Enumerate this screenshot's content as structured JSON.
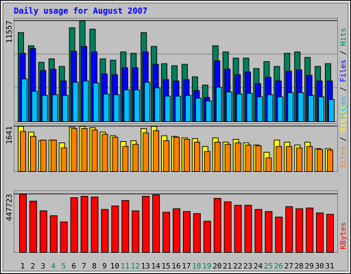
{
  "chart_data": [
    {
      "type": "bar",
      "title": "Daily usage for August 2007",
      "ylim": [
        0,
        11557
      ],
      "yticks": [
        11557
      ],
      "grid": true,
      "legend_separator": " / ",
      "series": [
        {
          "name": "Pages",
          "color": "#00c0ff",
          "values": [
            4908,
            3483,
            3008,
            3087,
            3008,
            4512,
            4670,
            4433,
            3166,
            3087,
            3641,
            3641,
            4512,
            3879,
            2929,
            2929,
            3008,
            2691,
            2375,
            3958,
            3404,
            3166,
            3246,
            2850,
            3087,
            2850,
            3325,
            3325,
            3008,
            2850,
            2533
          ]
        },
        {
          "name": "Files",
          "color": "#0000ff",
          "values": [
            7837,
            8391,
            5858,
            6016,
            4670,
            8074,
            8628,
            7995,
            5462,
            5383,
            6174,
            6174,
            7995,
            6570,
            4829,
            4670,
            4829,
            3562,
            2771,
            6966,
            6016,
            5383,
            5700,
            4354,
            5066,
            4670,
            5779,
            5937,
            5304,
            4670,
            4670
          ]
        },
        {
          "name": "Hits",
          "color": "#00805c",
          "values": [
            10211,
            8707,
            6808,
            7203,
            6333,
            10766,
            11557,
            10607,
            7203,
            7045,
            7995,
            7837,
            10211,
            8628,
            6649,
            6412,
            6570,
            5145,
            4195,
            8707,
            7995,
            7283,
            7283,
            6095,
            6887,
            6333,
            7837,
            7995,
            7362,
            6333,
            6649
          ]
        }
      ]
    },
    {
      "type": "bar",
      "ylim": [
        0,
        1641
      ],
      "yticks": [
        1641
      ],
      "grid": true,
      "legend_separator": " / ",
      "series": [
        {
          "name": "Sites",
          "color": "#ff8000",
          "values": [
            1459,
            1276,
            1146,
            1146,
            860,
            1563,
            1563,
            1511,
            1355,
            1250,
            912,
            990,
            1407,
            1485,
            1120,
            1250,
            1172,
            1068,
            729,
            1068,
            990,
            1042,
            964,
            938,
            495,
            912,
            912,
            860,
            912,
            808,
            782
          ]
        },
        {
          "name": "Visits",
          "color": "#ffff00",
          "values": [
            1641,
            1433,
            1120,
            1146,
            1042,
            1615,
            1641,
            1589,
            1433,
            1303,
            1094,
            1120,
            1563,
            1641,
            1303,
            1276,
            1224,
            1198,
            912,
            1224,
            1068,
            1172,
            1042,
            964,
            703,
            1146,
            1068,
            964,
            1068,
            834,
            834
          ]
        }
      ]
    },
    {
      "type": "bar",
      "ylim": [
        0,
        447723
      ],
      "yticks": [
        447723
      ],
      "grid": true,
      "categories": [
        "1",
        "2",
        "3",
        "4",
        "5",
        "6",
        "7",
        "8",
        "9",
        "10",
        "11",
        "12",
        "13",
        "14",
        "15",
        "16",
        "17",
        "18",
        "19",
        "20",
        "21",
        "22",
        "23",
        "24",
        "25",
        "26",
        "27",
        "28",
        "29",
        "30",
        "31"
      ],
      "category_colors": [
        "#000000",
        "#000000",
        "#000000",
        "#00805c",
        "#00805c",
        "#000000",
        "#000000",
        "#000000",
        "#000000",
        "#000000",
        "#00805c",
        "#00805c",
        "#000000",
        "#000000",
        "#000000",
        "#000000",
        "#000000",
        "#00805c",
        "#00805c",
        "#000000",
        "#000000",
        "#000000",
        "#000000",
        "#000000",
        "#00805c",
        "#00805c",
        "#000000",
        "#000000",
        "#000000",
        "#000000",
        "#000000"
      ],
      "series": [
        {
          "name": "KBytes",
          "color": "#ff0000",
          "values": [
            447723,
            394420,
            319800,
            282490,
            234520,
            421070,
            431730,
            426400,
            330460,
            357110,
            399750,
            319800,
            431730,
            442390,
            309140,
            335790,
            314470,
            298480,
            239850,
            415740,
            389090,
            362440,
            362440,
            330460,
            314470,
            271830,
            351780,
            335790,
            341120,
            303810,
            293150
          ]
        }
      ]
    }
  ]
}
